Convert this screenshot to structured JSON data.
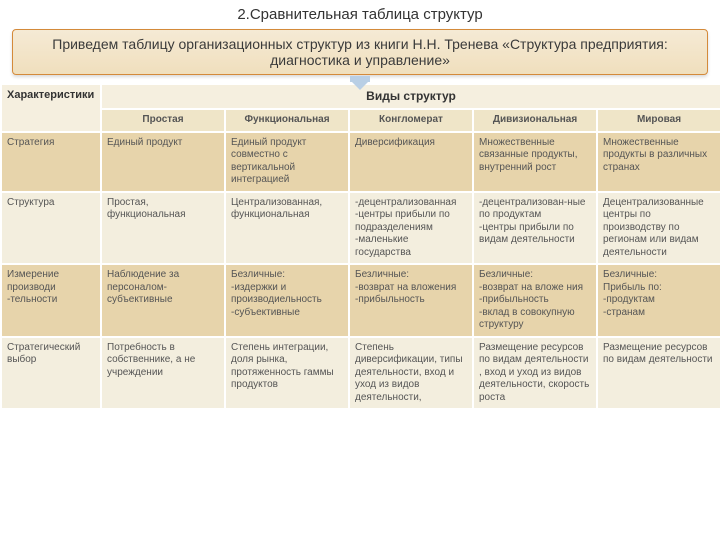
{
  "title": "2.Сравнительная таблица структур",
  "quote": "Приведем таблицу организационных структур из книги Н.Н. Тренева «Структура предприятия: диагностика и управление»",
  "table": {
    "header_characteristics": "Характеристики",
    "header_types": "Виды структур",
    "columns": [
      "Простая",
      "Функциональная",
      "Конгломерат",
      "Дивизиональная",
      "Мировая"
    ],
    "rows": [
      {
        "label": "Стратегия",
        "cells": [
          "Единый продукт",
          "Единый продукт совместно с вертикальной интеграцией",
          "Диверсификация",
          "Множественные связанные продукты, внутренний рост",
          "Множественные продукты в различных странах"
        ]
      },
      {
        "label": "Структура",
        "cells": [
          "Простая, функциональная",
          "Централизованная, функциональная",
          "-децентрализованная\n-центры прибыли по подразделениям\n-маленькие государства",
          "-децентрализован-ные по продуктам\n-центры прибыли по видам деятельности",
          "Децентрализованные центры по производству по регионам или видам деятельности"
        ]
      },
      {
        "label": "Измерение производи -тельности",
        "cells": [
          "Наблюдение за персоналом-субъективные",
          "Безличные:\n-издержки и производиельность\n-субъективные",
          "Безличные:\n-возврат на вложения\n-прибыльность",
          "Безличные:\n-возврат на вложе ния\n-прибыльность\n-вклад в совокупную структуру",
          "Безличные:\nПрибыль по:\n-продуктам\n-странам"
        ]
      },
      {
        "label": "Стратегический выбор",
        "cells": [
          "Потребность в собственнике, а не учреждении",
          "Степень интеграции, доля рынка, протяженность гаммы продуктов",
          "Степень диверсификации, типы деятельности, вход и уход из видов деятельности,",
          "Размещение ресурсов по видам деятельности , вход и уход из видов деятельности, скорость роста",
          "Размещение ресурсов по видам деятельности"
        ]
      }
    ]
  },
  "style": {
    "header_bg": "#f5efdf",
    "subheader_bg": "#efe5c8",
    "row_alt_a": "#e7d4ab",
    "row_alt_b": "#f3eede",
    "border_color": "#ffffff",
    "text_color": "#555555",
    "quote_bg_top": "#f5ead5",
    "quote_bg_bottom": "#f0dfbd",
    "quote_border": "#d48a3a",
    "arrow_color": "#b9cfe5"
  }
}
